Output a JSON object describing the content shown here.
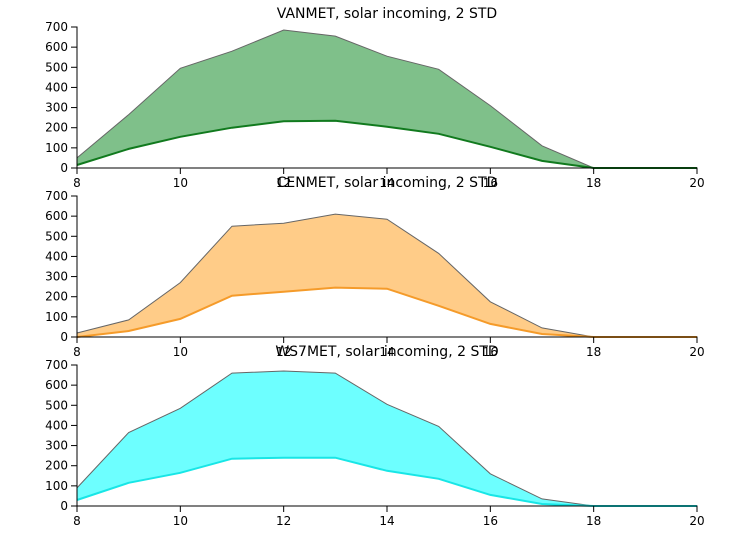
{
  "chart_data": [
    {
      "type": "area",
      "title": "VANMET, solar incoming, 2 STD",
      "x": [
        8,
        9,
        10,
        11,
        12,
        13,
        14,
        15,
        16,
        17,
        18,
        19,
        20
      ],
      "upper": [
        50,
        265,
        495,
        580,
        685,
        655,
        555,
        490,
        310,
        110,
        0,
        0,
        0
      ],
      "lower": [
        15,
        95,
        155,
        200,
        232,
        235,
        205,
        170,
        105,
        35,
        0,
        0,
        0
      ],
      "fill_color": "#7fc08a",
      "line_color": "#117a1e",
      "xticks": [
        8,
        10,
        12,
        14,
        16,
        18,
        20
      ],
      "yticks": [
        0,
        100,
        200,
        300,
        400,
        500,
        600,
        700
      ],
      "xlim": [
        8,
        20
      ],
      "ylim": [
        0,
        700
      ],
      "grid": false
    },
    {
      "type": "area",
      "title": "CENMET, solar incoming, 2 STD",
      "x": [
        8,
        9,
        10,
        11,
        12,
        13,
        14,
        15,
        16,
        17,
        18,
        19,
        20
      ],
      "upper": [
        20,
        85,
        270,
        550,
        565,
        610,
        585,
        415,
        175,
        45,
        0,
        0,
        0
      ],
      "lower": [
        0,
        30,
        90,
        205,
        225,
        245,
        240,
        155,
        65,
        15,
        0,
        0,
        0
      ],
      "fill_color": "#ffcc88",
      "line_color": "#f59b2a",
      "xticks": [
        8,
        10,
        12,
        14,
        16,
        18,
        20
      ],
      "yticks": [
        0,
        100,
        200,
        300,
        400,
        500,
        600,
        700
      ],
      "xlim": [
        8,
        20
      ],
      "ylim": [
        0,
        700
      ],
      "grid": false
    },
    {
      "type": "area",
      "title": "WS7MET, solar incoming, 2 STD",
      "x": [
        8,
        9,
        10,
        11,
        12,
        13,
        14,
        15,
        16,
        17,
        18,
        19,
        20
      ],
      "upper": [
        90,
        365,
        485,
        660,
        670,
        660,
        505,
        395,
        160,
        35,
        0,
        0,
        0
      ],
      "lower": [
        30,
        115,
        165,
        235,
        240,
        240,
        175,
        135,
        55,
        10,
        0,
        0,
        0
      ],
      "fill_color": "#6dffff",
      "line_color": "#18e6e6",
      "xticks": [
        8,
        10,
        12,
        14,
        16,
        18,
        20
      ],
      "yticks": [
        0,
        100,
        200,
        300,
        400,
        500,
        600,
        700
      ],
      "xlim": [
        8,
        20
      ],
      "ylim": [
        0,
        700
      ],
      "grid": false
    }
  ]
}
